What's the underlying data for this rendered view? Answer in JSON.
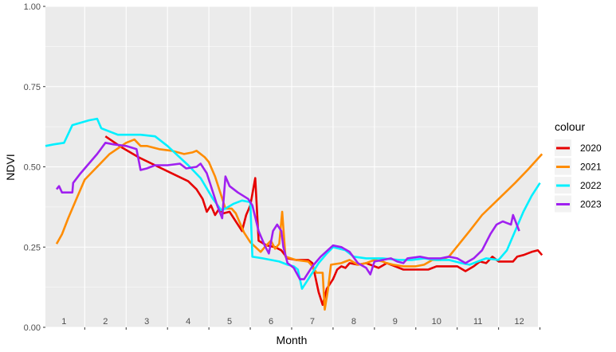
{
  "chart_data": {
    "type": "line",
    "xlabel": "Month",
    "ylabel": "NDVI",
    "xlim": [
      0.55,
      12.45
    ],
    "ylim": [
      0,
      1
    ],
    "y_ticks": [
      "0.00",
      "0.25",
      "0.50",
      "0.75",
      "1.00"
    ],
    "y_tick_values": [
      0,
      0.25,
      0.5,
      0.75,
      1.0
    ],
    "month_labels": [
      "1",
      "2",
      "3",
      "4",
      "5",
      "6",
      "7",
      "8",
      "9",
      "10",
      "11",
      "12"
    ],
    "legend": {
      "title": "colour",
      "placement": "right"
    },
    "grid": true,
    "series": [
      {
        "name": "2020",
        "color": "#e60000",
        "points": [
          [
            2,
            0.595
          ],
          [
            2.4,
            0.56
          ],
          [
            2.8,
            0.53
          ],
          [
            3.2,
            0.505
          ],
          [
            3.6,
            0.48
          ],
          [
            4.0,
            0.455
          ],
          [
            4.2,
            0.43
          ],
          [
            4.35,
            0.4
          ],
          [
            4.45,
            0.36
          ],
          [
            4.55,
            0.38
          ],
          [
            4.65,
            0.35
          ],
          [
            4.75,
            0.37
          ],
          [
            4.85,
            0.355
          ],
          [
            5.0,
            0.36
          ],
          [
            5.15,
            0.33
          ],
          [
            5.3,
            0.3
          ],
          [
            5.4,
            0.35
          ],
          [
            5.5,
            0.38
          ],
          [
            5.62,
            0.465
          ],
          [
            5.7,
            0.27
          ],
          [
            5.9,
            0.255
          ],
          [
            6.1,
            0.25
          ],
          [
            6.25,
            0.24
          ],
          [
            6.4,
            0.215
          ],
          [
            6.6,
            0.21
          ],
          [
            6.9,
            0.21
          ],
          [
            7.0,
            0.2
          ],
          [
            7.15,
            0.11
          ],
          [
            7.25,
            0.07
          ],
          [
            7.35,
            0.12
          ],
          [
            7.5,
            0.15
          ],
          [
            7.6,
            0.18
          ],
          [
            7.7,
            0.19
          ],
          [
            7.8,
            0.185
          ],
          [
            7.9,
            0.2
          ],
          [
            8.1,
            0.195
          ],
          [
            8.3,
            0.2
          ],
          [
            8.4,
            0.195
          ],
          [
            8.6,
            0.185
          ],
          [
            8.8,
            0.2
          ],
          [
            9.0,
            0.19
          ],
          [
            9.2,
            0.18
          ],
          [
            9.5,
            0.18
          ],
          [
            9.8,
            0.18
          ],
          [
            10.0,
            0.19
          ],
          [
            10.2,
            0.19
          ],
          [
            10.5,
            0.19
          ],
          [
            10.7,
            0.175
          ],
          [
            10.9,
            0.19
          ],
          [
            11.05,
            0.205
          ],
          [
            11.2,
            0.2
          ],
          [
            11.35,
            0.22
          ],
          [
            11.5,
            0.205
          ],
          [
            11.7,
            0.205
          ],
          [
            11.85,
            0.205
          ],
          [
            11.95,
            0.22
          ],
          [
            12.1,
            0.225
          ],
          [
            12.3,
            0.235
          ],
          [
            12.45,
            0.24
          ],
          [
            12.55,
            0.225
          ]
        ]
      },
      {
        "name": "2021",
        "color": "#ff8c00",
        "points": [
          [
            0.82,
            0.26
          ],
          [
            0.95,
            0.29
          ],
          [
            1.1,
            0.34
          ],
          [
            1.3,
            0.4
          ],
          [
            1.5,
            0.46
          ],
          [
            1.8,
            0.5
          ],
          [
            2.1,
            0.54
          ],
          [
            2.5,
            0.575
          ],
          [
            2.7,
            0.585
          ],
          [
            2.85,
            0.565
          ],
          [
            3.0,
            0.565
          ],
          [
            3.3,
            0.555
          ],
          [
            3.6,
            0.55
          ],
          [
            3.9,
            0.54
          ],
          [
            4.1,
            0.545
          ],
          [
            4.2,
            0.55
          ],
          [
            4.4,
            0.53
          ],
          [
            4.5,
            0.515
          ],
          [
            4.65,
            0.47
          ],
          [
            4.8,
            0.41
          ],
          [
            4.9,
            0.37
          ],
          [
            5.05,
            0.37
          ],
          [
            5.15,
            0.355
          ],
          [
            5.25,
            0.325
          ],
          [
            5.35,
            0.295
          ],
          [
            5.5,
            0.265
          ],
          [
            5.75,
            0.235
          ],
          [
            5.85,
            0.25
          ],
          [
            6.0,
            0.27
          ],
          [
            6.1,
            0.245
          ],
          [
            6.2,
            0.26
          ],
          [
            6.27,
            0.36
          ],
          [
            6.35,
            0.22
          ],
          [
            6.6,
            0.21
          ],
          [
            6.9,
            0.205
          ],
          [
            7.0,
            0.19
          ],
          [
            7.1,
            0.17
          ],
          [
            7.25,
            0.17
          ],
          [
            7.3,
            0.055
          ],
          [
            7.38,
            0.12
          ],
          [
            7.45,
            0.195
          ],
          [
            7.7,
            0.2
          ],
          [
            7.9,
            0.21
          ],
          [
            8.1,
            0.195
          ],
          [
            8.3,
            0.2
          ],
          [
            8.5,
            0.21
          ],
          [
            8.7,
            0.205
          ],
          [
            8.8,
            0.2
          ],
          [
            8.95,
            0.195
          ],
          [
            9.2,
            0.19
          ],
          [
            9.5,
            0.19
          ],
          [
            9.7,
            0.195
          ],
          [
            9.9,
            0.21
          ],
          [
            10.1,
            0.21
          ],
          [
            10.3,
            0.22
          ],
          [
            10.55,
            0.26
          ],
          [
            10.8,
            0.3
          ],
          [
            11.1,
            0.35
          ],
          [
            11.5,
            0.4
          ],
          [
            11.9,
            0.45
          ],
          [
            12.2,
            0.49
          ],
          [
            12.55,
            0.54
          ]
        ]
      },
      {
        "name": "2022",
        "color": "#00f0ff",
        "points": [
          [
            0.55,
            0.565
          ],
          [
            0.75,
            0.57
          ],
          [
            1.0,
            0.575
          ],
          [
            1.2,
            0.63
          ],
          [
            1.6,
            0.645
          ],
          [
            1.8,
            0.65
          ],
          [
            1.9,
            0.62
          ],
          [
            2.3,
            0.6
          ],
          [
            2.6,
            0.6
          ],
          [
            2.85,
            0.6
          ],
          [
            3.2,
            0.595
          ],
          [
            3.5,
            0.565
          ],
          [
            3.75,
            0.535
          ],
          [
            4.0,
            0.505
          ],
          [
            4.3,
            0.465
          ],
          [
            4.6,
            0.4
          ],
          [
            4.8,
            0.365
          ],
          [
            4.9,
            0.37
          ],
          [
            5.1,
            0.385
          ],
          [
            5.3,
            0.395
          ],
          [
            5.5,
            0.39
          ],
          [
            5.55,
            0.22
          ],
          [
            5.8,
            0.215
          ],
          [
            6.2,
            0.205
          ],
          [
            6.4,
            0.195
          ],
          [
            6.55,
            0.19
          ],
          [
            6.65,
            0.18
          ],
          [
            6.75,
            0.12
          ],
          [
            6.9,
            0.15
          ],
          [
            7.0,
            0.17
          ],
          [
            7.15,
            0.2
          ],
          [
            7.35,
            0.23
          ],
          [
            7.5,
            0.25
          ],
          [
            7.8,
            0.24
          ],
          [
            8.0,
            0.22
          ],
          [
            8.3,
            0.215
          ],
          [
            8.7,
            0.215
          ],
          [
            9.1,
            0.21
          ],
          [
            9.4,
            0.21
          ],
          [
            9.7,
            0.215
          ],
          [
            10.0,
            0.21
          ],
          [
            10.3,
            0.21
          ],
          [
            10.6,
            0.2
          ],
          [
            10.8,
            0.195
          ],
          [
            11.0,
            0.205
          ],
          [
            11.2,
            0.215
          ],
          [
            11.5,
            0.21
          ],
          [
            11.7,
            0.24
          ],
          [
            11.9,
            0.3
          ],
          [
            12.1,
            0.36
          ],
          [
            12.3,
            0.41
          ],
          [
            12.5,
            0.45
          ]
        ]
      },
      {
        "name": "2023",
        "color": "#a020f0",
        "points": [
          [
            0.82,
            0.43
          ],
          [
            0.88,
            0.44
          ],
          [
            0.95,
            0.42
          ],
          [
            1.1,
            0.42
          ],
          [
            1.2,
            0.42
          ],
          [
            1.22,
            0.45
          ],
          [
            1.4,
            0.48
          ],
          [
            1.6,
            0.51
          ],
          [
            1.8,
            0.54
          ],
          [
            2.0,
            0.575
          ],
          [
            2.2,
            0.57
          ],
          [
            2.5,
            0.565
          ],
          [
            2.75,
            0.555
          ],
          [
            2.85,
            0.49
          ],
          [
            3.0,
            0.495
          ],
          [
            3.2,
            0.505
          ],
          [
            3.5,
            0.505
          ],
          [
            3.8,
            0.51
          ],
          [
            3.95,
            0.495
          ],
          [
            4.2,
            0.5
          ],
          [
            4.3,
            0.51
          ],
          [
            4.45,
            0.48
          ],
          [
            4.6,
            0.42
          ],
          [
            4.7,
            0.38
          ],
          [
            4.82,
            0.34
          ],
          [
            4.9,
            0.47
          ],
          [
            5.0,
            0.44
          ],
          [
            5.2,
            0.42
          ],
          [
            5.45,
            0.4
          ],
          [
            5.55,
            0.38
          ],
          [
            5.7,
            0.3
          ],
          [
            5.85,
            0.255
          ],
          [
            5.95,
            0.23
          ],
          [
            6.05,
            0.3
          ],
          [
            6.15,
            0.32
          ],
          [
            6.25,
            0.3
          ],
          [
            6.3,
            0.25
          ],
          [
            6.4,
            0.2
          ],
          [
            6.55,
            0.185
          ],
          [
            6.7,
            0.15
          ],
          [
            6.8,
            0.15
          ],
          [
            7.0,
            0.19
          ],
          [
            7.2,
            0.22
          ],
          [
            7.5,
            0.255
          ],
          [
            7.7,
            0.25
          ],
          [
            7.9,
            0.235
          ],
          [
            8.1,
            0.2
          ],
          [
            8.3,
            0.185
          ],
          [
            8.4,
            0.165
          ],
          [
            8.5,
            0.205
          ],
          [
            8.7,
            0.21
          ],
          [
            8.9,
            0.215
          ],
          [
            9.05,
            0.205
          ],
          [
            9.2,
            0.2
          ],
          [
            9.3,
            0.215
          ],
          [
            9.6,
            0.22
          ],
          [
            9.8,
            0.215
          ],
          [
            10.1,
            0.215
          ],
          [
            10.3,
            0.22
          ],
          [
            10.5,
            0.215
          ],
          [
            10.7,
            0.2
          ],
          [
            10.9,
            0.215
          ],
          [
            11.1,
            0.24
          ],
          [
            11.3,
            0.29
          ],
          [
            11.45,
            0.32
          ],
          [
            11.6,
            0.33
          ],
          [
            11.8,
            0.32
          ],
          [
            11.85,
            0.35
          ],
          [
            12.0,
            0.3
          ]
        ]
      }
    ]
  }
}
